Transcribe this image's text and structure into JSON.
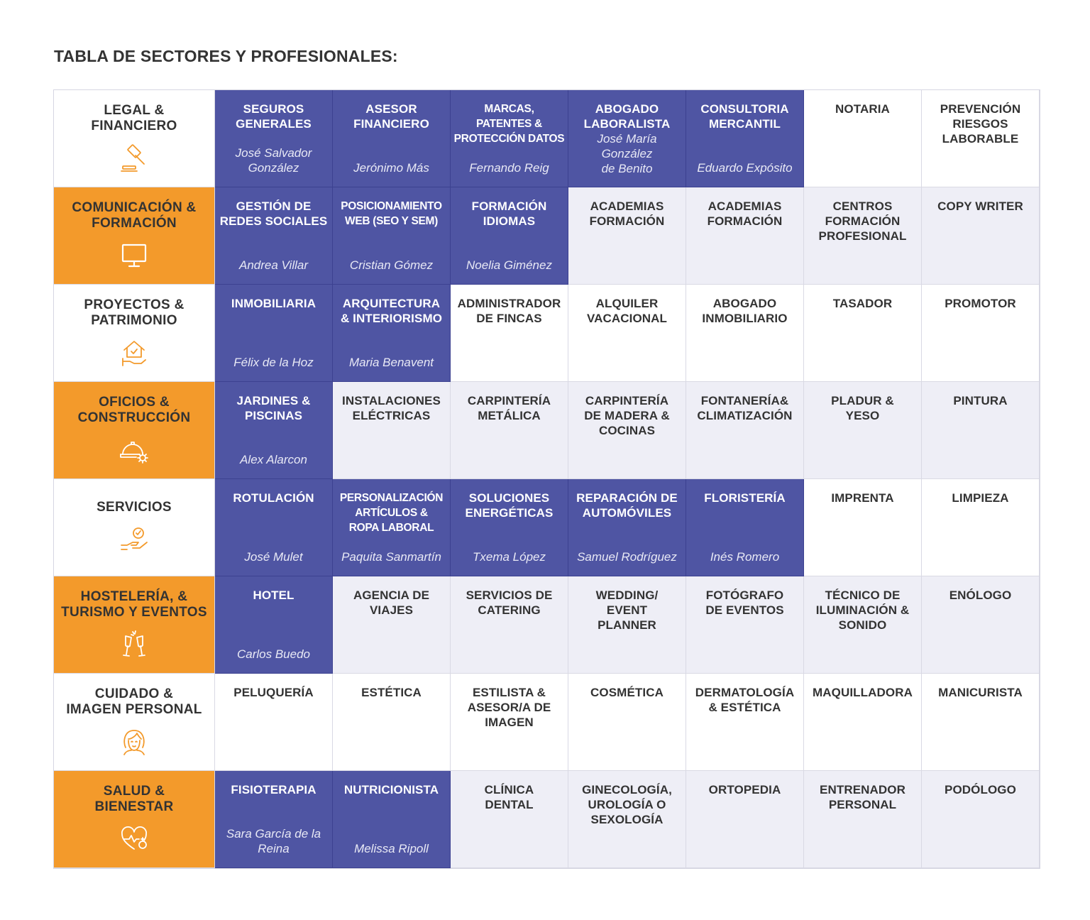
{
  "title": "TABLA DE SECTORES Y PROFESIONALES:",
  "colors": {
    "accent_blue": "#4f55a3",
    "accent_orange": "#f39a2b",
    "light_grey": "#eeeef6",
    "icon_orange": "#f39a2b"
  },
  "rows": [
    {
      "sector": "LEGAL &\nFINANCIERO",
      "icon": "gavel-icon",
      "cells": [
        {
          "label": "SEGUROS\nGENERALES",
          "person": "José Salvador\nGonzález"
        },
        {
          "label": "ASESOR\nFINANCIERO",
          "person": "Jerónimo Más"
        },
        {
          "label": "MARCAS,\nPATENTES &\nPROTECCIÓN DATOS",
          "person": "Fernando Reig"
        },
        {
          "label": "ABOGADO\nLABORALISTA",
          "person": "José María\nGonzález\nde Benito"
        },
        {
          "label": "CONSULTORIA\nMERCANTIL",
          "person": "Eduardo Expósito"
        },
        {
          "label": "NOTARIA",
          "person": ""
        },
        {
          "label": "PREVENCIÓN\nRIESGOS\nLABORABLE",
          "person": ""
        }
      ]
    },
    {
      "sector": "COMUNICACIÓN &\nFORMACIÓN",
      "icon": "monitor-icon",
      "cells": [
        {
          "label": "GESTIÓN DE\nREDES SOCIALES",
          "person": "Andrea Villar"
        },
        {
          "label": "POSICIONAMIENTO\nWEB (SEO Y SEM)",
          "person": "Cristian Gómez"
        },
        {
          "label": "FORMACIÓN\nIDIOMAS",
          "person": "Noelia Giménez"
        },
        {
          "label": "ACADEMIAS\nFORMACIÓN",
          "person": ""
        },
        {
          "label": "ACADEMIAS\nFORMACIÓN",
          "person": ""
        },
        {
          "label": "CENTROS\nFORMACIÓN\nPROFESIONAL",
          "person": ""
        },
        {
          "label": "COPY WRITER",
          "person": ""
        }
      ]
    },
    {
      "sector": "PROYECTOS &\nPATRIMONIO",
      "icon": "house-hand-icon",
      "cells": [
        {
          "label": "INMOBILIARIA",
          "person": "Félix de la Hoz"
        },
        {
          "label": "ARQUITECTURA\n& INTERIORISMO",
          "person": "Maria Benavent"
        },
        {
          "label": "ADMINISTRADOR\nDE FINCAS",
          "person": ""
        },
        {
          "label": "ALQUILER\nVACACIONAL",
          "person": ""
        },
        {
          "label": "ABOGADO\nINMOBILIARIO",
          "person": ""
        },
        {
          "label": "TASADOR",
          "person": ""
        },
        {
          "label": "PROMOTOR",
          "person": ""
        }
      ]
    },
    {
      "sector": "OFICIOS &\nCONSTRUCCIÓN",
      "icon": "helmet-gear-icon",
      "cells": [
        {
          "label": "JARDINES &\nPISCINAS",
          "person": "Alex Alarcon"
        },
        {
          "label": "INSTALACIONES\nELÉCTRICAS",
          "person": ""
        },
        {
          "label": "CARPINTERÍA\nMETÁLICA",
          "person": ""
        },
        {
          "label": "CARPINTERÍA\nDE MADERA &\nCOCINAS",
          "person": ""
        },
        {
          "label": "FONTANERÍA&\nCLIMATIZACIÓN",
          "person": ""
        },
        {
          "label": "PLADUR &\nYESO",
          "person": ""
        },
        {
          "label": "PINTURA",
          "person": ""
        }
      ]
    },
    {
      "sector": "SERVICIOS",
      "icon": "hand-check-icon",
      "cells": [
        {
          "label": "ROTULACIÓN",
          "person": "José Mulet"
        },
        {
          "label": "PERSONALIZACIÓN\nARTÍCULOS &\nROPA LABORAL",
          "person": "Paquita Sanmartín"
        },
        {
          "label": "SOLUCIONES\nENERGÉTICAS",
          "person": "Txema López"
        },
        {
          "label": "REPARACIÓN DE\nAUTOMÓVILES",
          "person": "Samuel Rodríguez"
        },
        {
          "label": "FLORISTERÍA",
          "person": "Inés Romero"
        },
        {
          "label": "IMPRENTA",
          "person": ""
        },
        {
          "label": "LIMPIEZA",
          "person": ""
        }
      ]
    },
    {
      "sector": "HOSTELERÍA, &\nTURISMO Y EVENTOS",
      "icon": "champagne-glasses-icon",
      "cells": [
        {
          "label": "HOTEL",
          "person": "Carlos Buedo"
        },
        {
          "label": "AGENCIA DE\nVIAJES",
          "person": ""
        },
        {
          "label": "SERVICIOS DE\nCATERING",
          "person": ""
        },
        {
          "label": "WEDDING/\nEVENT\nPLANNER",
          "person": ""
        },
        {
          "label": "FOTÓGRAFO\nDE EVENTOS",
          "person": ""
        },
        {
          "label": "TÉCNICO DE\nILUMINACIÓN &\nSONIDO",
          "person": ""
        },
        {
          "label": "ENÓLOGO",
          "person": ""
        }
      ]
    },
    {
      "sector": "CUIDADO &\nIMAGEN PERSONAL",
      "icon": "face-icon",
      "cells": [
        {
          "label": "PELUQUERÍA",
          "person": ""
        },
        {
          "label": "ESTÉTICA",
          "person": ""
        },
        {
          "label": "ESTILISTA &\nASESOR/A DE\nIMAGEN",
          "person": ""
        },
        {
          "label": "COSMÉTICA",
          "person": ""
        },
        {
          "label": "DERMATOLOGÍA\n& ESTÉTICA",
          "person": ""
        },
        {
          "label": "MAQUILLADORA",
          "person": ""
        },
        {
          "label": "MANICURISTA",
          "person": ""
        }
      ]
    },
    {
      "sector": "SALUD &\nBIENESTAR",
      "icon": "heart-pulse-icon",
      "cells": [
        {
          "label": "FISIOTERAPIA",
          "person": "Sara García de la\nReina"
        },
        {
          "label": "NUTRICIONISTA",
          "person": "Melissa Ripoll"
        },
        {
          "label": "CLÍNICA\nDENTAL",
          "person": ""
        },
        {
          "label": "GINECOLOGÍA,\nUROLOGÍA O\nSEXOLOGÍA",
          "person": ""
        },
        {
          "label": "ORTOPEDIA",
          "person": ""
        },
        {
          "label": "ENTRENADOR\nPERSONAL",
          "person": ""
        },
        {
          "label": "PODÓLOGO",
          "person": ""
        }
      ]
    }
  ]
}
